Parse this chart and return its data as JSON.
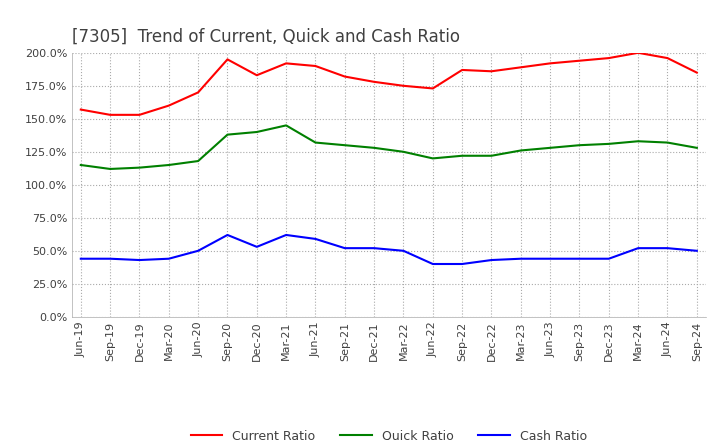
{
  "title": "[7305]  Trend of Current, Quick and Cash Ratio",
  "x_labels": [
    "Jun-19",
    "Sep-19",
    "Dec-19",
    "Mar-20",
    "Jun-20",
    "Sep-20",
    "Dec-20",
    "Mar-21",
    "Jun-21",
    "Sep-21",
    "Dec-21",
    "Mar-22",
    "Jun-22",
    "Sep-22",
    "Dec-22",
    "Mar-23",
    "Jun-23",
    "Sep-23",
    "Dec-23",
    "Mar-24",
    "Jun-24",
    "Sep-24"
  ],
  "current_ratio": [
    157,
    153,
    153,
    160,
    170,
    195,
    183,
    192,
    190,
    182,
    178,
    175,
    173,
    187,
    186,
    189,
    192,
    194,
    196,
    200,
    196,
    185
  ],
  "quick_ratio": [
    115,
    112,
    113,
    115,
    118,
    138,
    140,
    145,
    132,
    130,
    128,
    125,
    120,
    122,
    122,
    126,
    128,
    130,
    131,
    133,
    132,
    128
  ],
  "cash_ratio": [
    44,
    44,
    43,
    44,
    50,
    62,
    53,
    62,
    59,
    52,
    52,
    50,
    40,
    40,
    43,
    44,
    44,
    44,
    44,
    52,
    52,
    50
  ],
  "current_color": "#FF0000",
  "quick_color": "#008000",
  "cash_color": "#0000FF",
  "ylim": [
    0,
    200
  ],
  "yticks": [
    0,
    25,
    50,
    75,
    100,
    125,
    150,
    175,
    200
  ],
  "background_color": "#FFFFFF",
  "grid_color": "#AAAAAA",
  "title_color": "#404040",
  "title_fontsize": 12,
  "legend_fontsize": 9,
  "tick_fontsize": 8
}
